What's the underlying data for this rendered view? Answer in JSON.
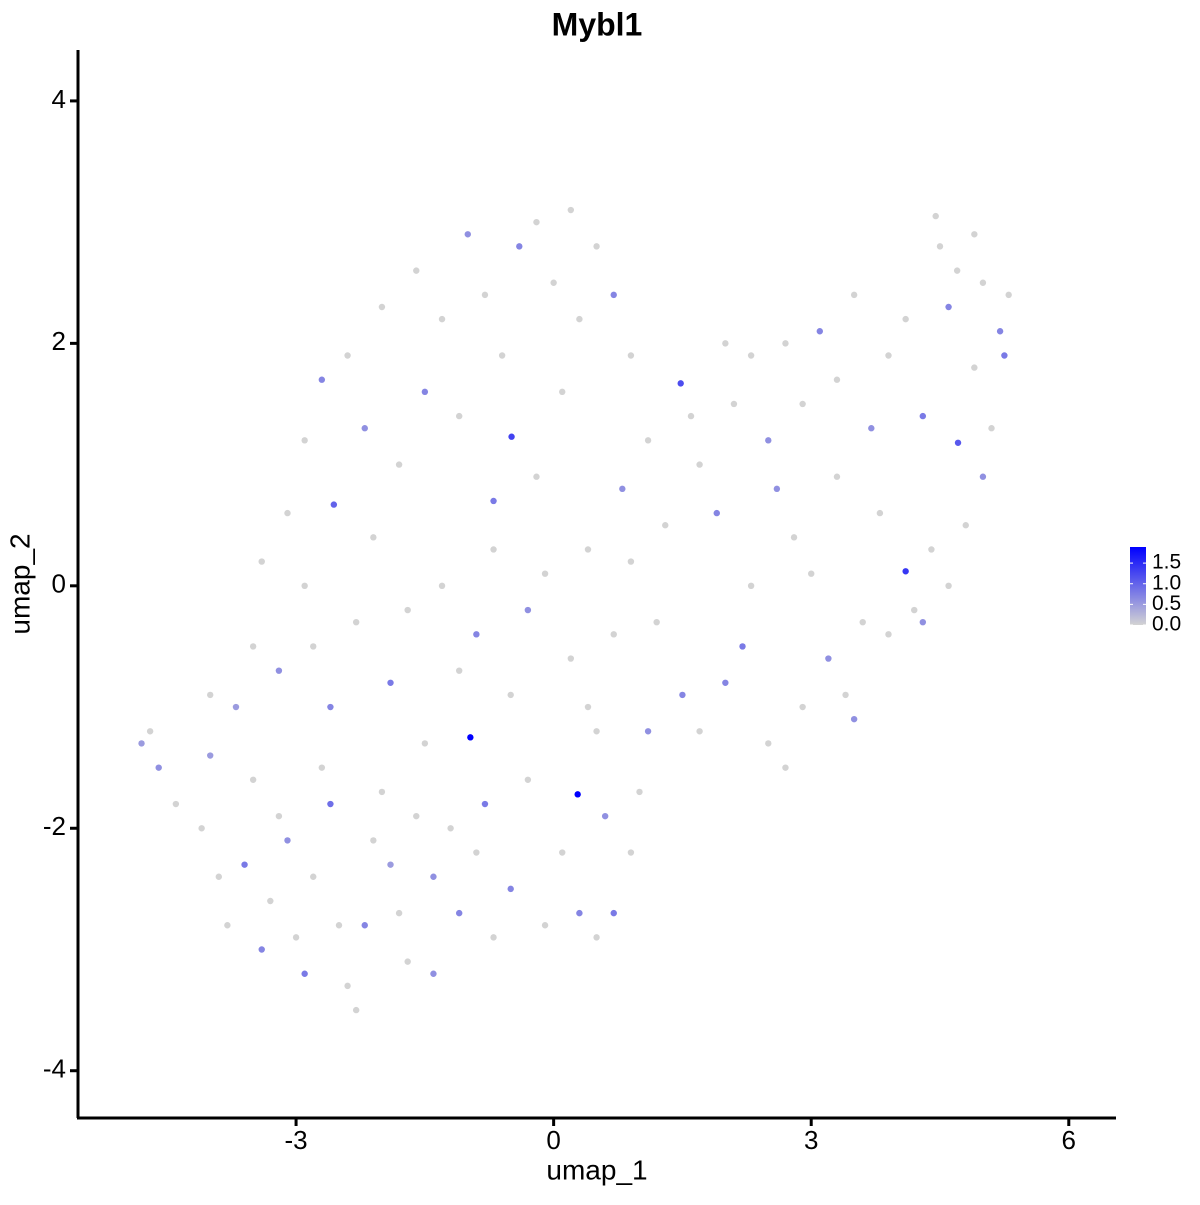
{
  "chart_data": {
    "type": "scatter",
    "title": "Mybl1",
    "x_label": "umap_1",
    "y_label": "umap_2",
    "xlim": [
      -5.54,
      6.55
    ],
    "ylim": [
      -4.39,
      4.42
    ],
    "xticks": [
      -3,
      0,
      3,
      6
    ],
    "yticks": [
      -4,
      -2,
      0,
      2,
      4
    ],
    "color_low": "#d3d3d3",
    "color_high": "#0000ff",
    "colorbar_lim": [
      0,
      1.89
    ],
    "colorbar_ticks": [
      {
        "value": 0,
        "label": "0.0"
      },
      0.5,
      {
        "value": 1,
        "label": "1.0"
      },
      1.5
    ],
    "x": [
      -4.8,
      -4.7,
      -4.6,
      -4.4,
      -4.1,
      -4.0,
      -3.9,
      -3.8,
      -3.6,
      -3.5,
      -3.4,
      -3.3,
      -3.2,
      -3.1,
      -3.0,
      -2.9,
      -2.8,
      -2.7,
      -2.6,
      -2.5,
      -2.4,
      -2.3,
      -2.2,
      -2.1,
      -2.0,
      -1.9,
      -1.8,
      -1.7,
      -1.6,
      -1.4,
      -1.4,
      -1.2,
      -1.1,
      -0.97,
      -0.9,
      -0.8,
      -0.7,
      -0.5,
      -0.3,
      -0.1,
      0.1,
      0.28,
      0.3,
      0.5,
      0.6,
      0.7,
      0.9,
      1.0,
      1.1,
      0.4,
      -4.0,
      -3.7,
      -3.5,
      -3.4,
      -3.2,
      -2.9,
      -2.8,
      -2.6,
      -2.3,
      -2.1,
      -1.9,
      -1.7,
      -1.5,
      -1.3,
      -1.1,
      -0.9,
      -0.7,
      -0.5,
      -0.3,
      -0.1,
      0.2,
      0.5,
      0.7,
      0.9,
      1.2,
      1.5,
      1.7,
      2.0,
      2.2,
      2.5,
      2.7,
      2.9,
      3.2,
      3.4,
      3.6,
      3.5,
      3.9,
      4.2,
      4.4,
      4.1,
      -3.1,
      -2.9,
      -2.7,
      -2.56,
      -2.4,
      -2.2,
      -2.0,
      -1.8,
      -1.6,
      -1.5,
      -1.3,
      -1.1,
      -1.0,
      -0.8,
      -0.6,
      -0.49,
      -0.4,
      -0.2,
      0.0,
      0.2,
      0.1,
      0.3,
      0.5,
      0.7,
      0.9,
      1.1,
      0.8,
      0.4,
      -0.2,
      -0.7,
      1.3,
      1.48,
      1.7,
      1.9,
      2.1,
      2.3,
      2.5,
      2.7,
      2.9,
      3.1,
      3.3,
      3.5,
      3.7,
      3.9,
      4.1,
      4.3,
      4.5,
      4.6,
      4.71,
      4.9,
      5.0,
      5.2,
      5.1,
      5.0,
      4.8,
      4.6,
      4.3,
      3.8,
      3.3,
      2.8,
      4.45,
      4.7,
      4.9,
      5.3,
      5.25,
      2.0,
      1.6,
      2.3,
      2.6,
      3.0
    ],
    "y": [
      -1.3,
      -1.2,
      -1.5,
      -1.8,
      -2.0,
      -1.4,
      -2.4,
      -2.8,
      -2.3,
      -1.6,
      -3.0,
      -2.6,
      -1.9,
      -2.1,
      -2.9,
      -3.2,
      -2.4,
      -1.5,
      -1.8,
      -2.8,
      -3.3,
      -3.5,
      -2.8,
      -2.1,
      -1.7,
      -2.3,
      -2.7,
      -3.1,
      -1.9,
      -2.4,
      -3.2,
      -2.0,
      -2.7,
      -1.25,
      -2.2,
      -1.8,
      -2.9,
      -2.5,
      -1.6,
      -2.8,
      -2.2,
      -1.72,
      -2.7,
      -2.9,
      -1.9,
      -2.7,
      -2.2,
      -1.7,
      -1.2,
      -1.0,
      -0.9,
      -1.0,
      -0.5,
      0.2,
      -0.7,
      0.0,
      -0.5,
      -1.0,
      -0.3,
      0.4,
      -0.8,
      -0.2,
      -1.3,
      0.0,
      -0.7,
      -0.4,
      0.3,
      -0.9,
      -0.2,
      0.1,
      -0.6,
      -1.2,
      -0.4,
      0.2,
      -0.3,
      -0.9,
      -1.2,
      -0.8,
      -0.5,
      -1.3,
      -1.5,
      -1.0,
      -0.6,
      -0.9,
      -0.3,
      -1.1,
      -0.4,
      -0.2,
      0.3,
      0.12,
      0.6,
      1.2,
      1.7,
      0.67,
      1.9,
      1.3,
      2.3,
      1.0,
      2.6,
      1.6,
      2.2,
      1.4,
      2.9,
      2.4,
      1.9,
      1.23,
      2.8,
      3.0,
      2.5,
      3.1,
      1.6,
      2.2,
      2.8,
      2.4,
      1.9,
      1.2,
      0.8,
      0.3,
      0.9,
      0.7,
      0.5,
      1.67,
      1.0,
      0.6,
      1.5,
      1.9,
      1.2,
      2.0,
      1.5,
      2.1,
      1.7,
      2.4,
      1.3,
      1.9,
      2.2,
      1.4,
      2.8,
      2.3,
      1.18,
      1.8,
      2.5,
      2.1,
      1.3,
      0.9,
      0.5,
      0.0,
      -0.3,
      0.6,
      0.9,
      0.4,
      3.05,
      2.6,
      2.9,
      2.4,
      1.9,
      2.0,
      1.4,
      0.0,
      0.8,
      0.1
    ],
    "expression": [
      0.5,
      0,
      0.6,
      0,
      0,
      0.5,
      0,
      0,
      0.8,
      0,
      0.7,
      0,
      0,
      0.6,
      0,
      0.8,
      0,
      0,
      0.9,
      0,
      0,
      0,
      0.7,
      0,
      0,
      0.5,
      0,
      0,
      0,
      0.6,
      0.6,
      0,
      0.7,
      1.9,
      0,
      0.8,
      0,
      0.7,
      0,
      0,
      0,
      1.9,
      0.7,
      0,
      0.6,
      0.8,
      0,
      0,
      0.6,
      0,
      0,
      0.5,
      0,
      0,
      0.6,
      0,
      0,
      0.7,
      0,
      0,
      0.8,
      0,
      0,
      0,
      0,
      0.7,
      0,
      0,
      0.6,
      0,
      0,
      0,
      0,
      0,
      0,
      0.7,
      0,
      0.7,
      0.8,
      0,
      0,
      0,
      0.6,
      0,
      0,
      0.6,
      0,
      0,
      0,
      1.4,
      0,
      0,
      0.7,
      1.0,
      0,
      0.6,
      0,
      0,
      0,
      0.7,
      0,
      0,
      0.6,
      0,
      0,
      1.3,
      0.7,
      0,
      0,
      0,
      0,
      0,
      0,
      0.7,
      0,
      0,
      0.6,
      0,
      0,
      0.8,
      0,
      1.2,
      0,
      0.7,
      0,
      0,
      0.6,
      0,
      0,
      0.7,
      0,
      0,
      0.6,
      0,
      0,
      0.8,
      0,
      0.7,
      1.1,
      0,
      0,
      0.7,
      0,
      0.6,
      0,
      0,
      0.6,
      0,
      0,
      0,
      0,
      0,
      0,
      0,
      0.8,
      0,
      0,
      0,
      0.6,
      0
    ]
  }
}
